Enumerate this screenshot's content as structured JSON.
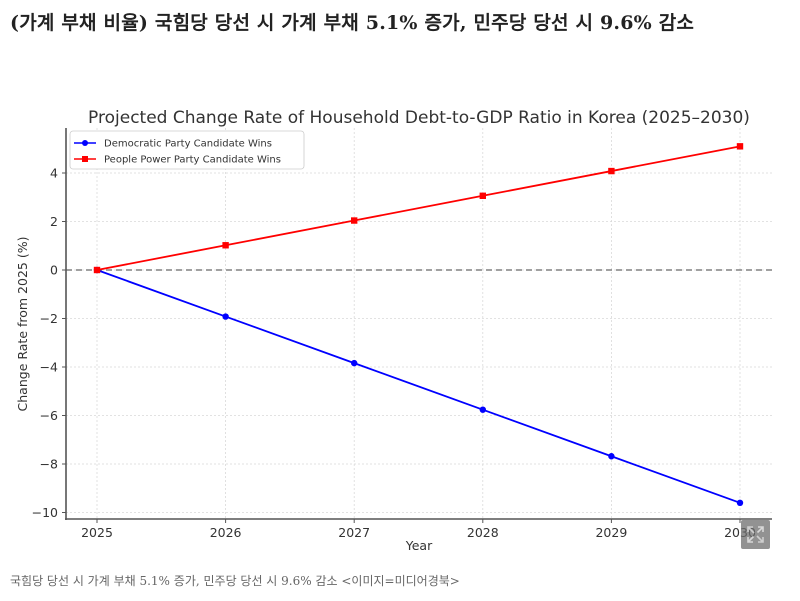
{
  "article": {
    "headline": "(가계 부채 비율) 국힘당 당선 시 가계 부채 5.1% 증가, 민주당 당선 시 9.6% 감소",
    "caption": "국힘당 당선 시 가계 부채 5.1% 증가, 민주당 당선 시 9.6% 감소 <이미지=미디어경북>",
    "expand_icon": "expand-icon"
  },
  "chart_data": {
    "type": "line",
    "title": "Projected Change Rate of Household Debt-to-GDP Ratio in Korea (2025–2030)",
    "xlabel": "Year",
    "ylabel": "Change Rate from 2025 (%)",
    "x": [
      2025,
      2026,
      2027,
      2028,
      2029,
      2030
    ],
    "x_tick_labels": [
      "2025",
      "2026",
      "2027",
      "2028",
      "2029",
      "2030"
    ],
    "y_tick_labels": [
      "4",
      "2",
      "0",
      "−2",
      "−4",
      "−6",
      "−8",
      "−10"
    ],
    "y_ticks": [
      4,
      2,
      0,
      -2,
      -4,
      -6,
      -8,
      -10
    ],
    "ylim": [
      -10.4,
      5.85
    ],
    "grid": true,
    "reference_line": {
      "y": 0,
      "style": "dashed",
      "color": "#808080"
    },
    "legend_position": "upper left",
    "series": [
      {
        "name": "Democratic Party Candidate Wins",
        "color": "#0000ff",
        "marker": "circle",
        "values": [
          0,
          -1.92,
          -3.84,
          -5.76,
          -7.68,
          -9.6
        ]
      },
      {
        "name": "People Power Party Candidate Wins",
        "color": "#ff0000",
        "marker": "square",
        "values": [
          0,
          1.02,
          2.04,
          3.06,
          4.08,
          5.1
        ]
      }
    ]
  }
}
